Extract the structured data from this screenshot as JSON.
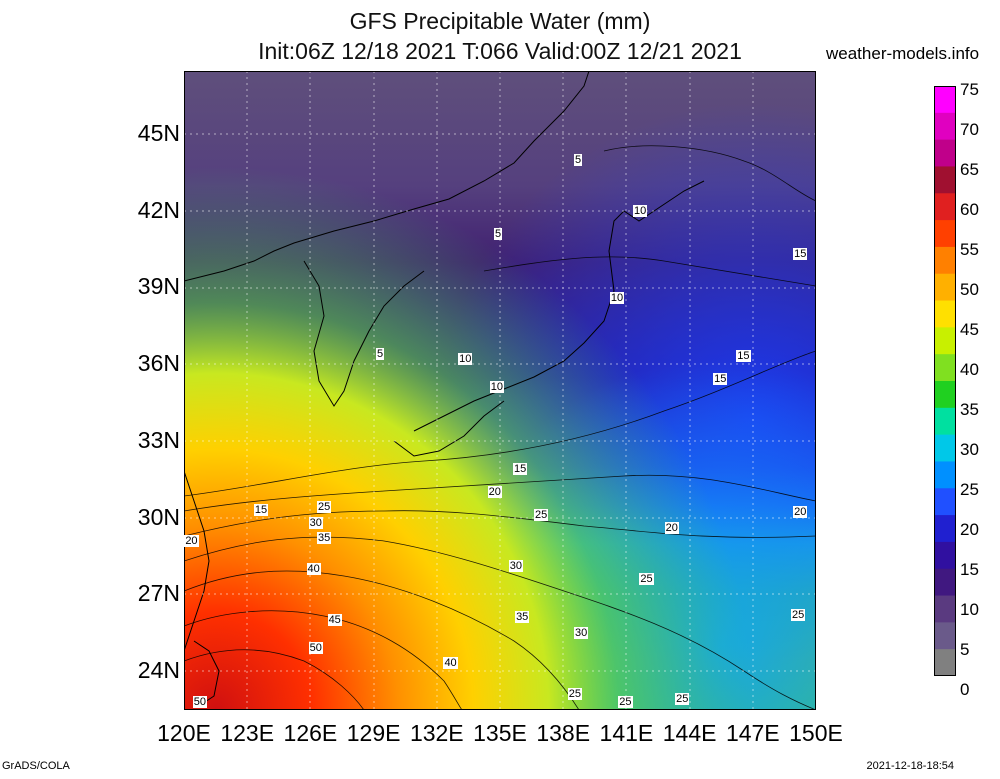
{
  "title_line1": "GFS Precipitable Water (mm)",
  "title_line2": "Init:06Z 12/18 2021 T:066 Valid:00Z 12/21 2021",
  "site": "weather-models.info",
  "footer_left": "GrADS/COLA",
  "footer_right": "2021-12-18-18:54",
  "lat_labels": [
    "45N",
    "42N",
    "39N",
    "36N",
    "33N",
    "30N",
    "27N",
    "24N"
  ],
  "lon_labels": [
    "120E",
    "123E",
    "126E",
    "129E",
    "132E",
    "135E",
    "138E",
    "141E",
    "144E",
    "147E",
    "150E"
  ],
  "colorbar": {
    "labels": [
      "75",
      "70",
      "65",
      "60",
      "55",
      "50",
      "45",
      "40",
      "35",
      "30",
      "25",
      "20",
      "15",
      "10",
      "5",
      "0"
    ],
    "colors": [
      "#ff00ff",
      "#e000c0",
      "#c0008a",
      "#a01030",
      "#e02020",
      "#ff4000",
      "#ff8000",
      "#ffb000",
      "#ffe000",
      "#c8f000",
      "#80e020",
      "#20d020",
      "#00e0a0",
      "#00c8e8",
      "#0090ff",
      "#2050ff",
      "#2020d0",
      "#3010a0",
      "#401880",
      "#5a3a80",
      "#6a5a8a",
      "#808080"
    ]
  },
  "contour_labels": [
    {
      "text": "5",
      "lon": 138.8,
      "lat": 44.0
    },
    {
      "text": "5",
      "lon": 135.0,
      "lat": 41.1
    },
    {
      "text": "5",
      "lon": 129.4,
      "lat": 36.4
    },
    {
      "text": "10",
      "lon": 141.6,
      "lat": 42.0
    },
    {
      "text": "10",
      "lon": 140.5,
      "lat": 38.6
    },
    {
      "text": "10",
      "lon": 133.3,
      "lat": 36.2
    },
    {
      "text": "10",
      "lon": 134.8,
      "lat": 35.1
    },
    {
      "text": "15",
      "lon": 149.2,
      "lat": 40.3
    },
    {
      "text": "15",
      "lon": 146.5,
      "lat": 36.3
    },
    {
      "text": "15",
      "lon": 145.4,
      "lat": 35.4
    },
    {
      "text": "15",
      "lon": 135.9,
      "lat": 31.9
    },
    {
      "text": "15",
      "lon": 123.6,
      "lat": 30.3
    },
    {
      "text": "20",
      "lon": 134.7,
      "lat": 31.0
    },
    {
      "text": "20",
      "lon": 120.3,
      "lat": 29.1
    },
    {
      "text": "20",
      "lon": 143.1,
      "lat": 29.6
    },
    {
      "text": "20",
      "lon": 149.2,
      "lat": 30.2
    },
    {
      "text": "25",
      "lon": 126.6,
      "lat": 30.4
    },
    {
      "text": "25",
      "lon": 136.9,
      "lat": 30.1
    },
    {
      "text": "25",
      "lon": 141.9,
      "lat": 27.6
    },
    {
      "text": "25",
      "lon": 149.1,
      "lat": 26.2
    },
    {
      "text": "25",
      "lon": 138.5,
      "lat": 23.1
    },
    {
      "text": "25",
      "lon": 140.9,
      "lat": 22.8
    },
    {
      "text": "25",
      "lon": 143.6,
      "lat": 22.9
    },
    {
      "text": "30",
      "lon": 126.2,
      "lat": 29.8
    },
    {
      "text": "30",
      "lon": 135.7,
      "lat": 28.1
    },
    {
      "text": "30",
      "lon": 138.8,
      "lat": 25.5
    },
    {
      "text": "35",
      "lon": 126.6,
      "lat": 29.2
    },
    {
      "text": "35",
      "lon": 136.0,
      "lat": 26.1
    },
    {
      "text": "40",
      "lon": 126.1,
      "lat": 28.0
    },
    {
      "text": "40",
      "lon": 132.6,
      "lat": 24.3
    },
    {
      "text": "45",
      "lon": 127.1,
      "lat": 26.0
    },
    {
      "text": "50",
      "lon": 126.2,
      "lat": 24.9
    },
    {
      "text": "50",
      "lon": 120.7,
      "lat": 22.5
    }
  ]
}
